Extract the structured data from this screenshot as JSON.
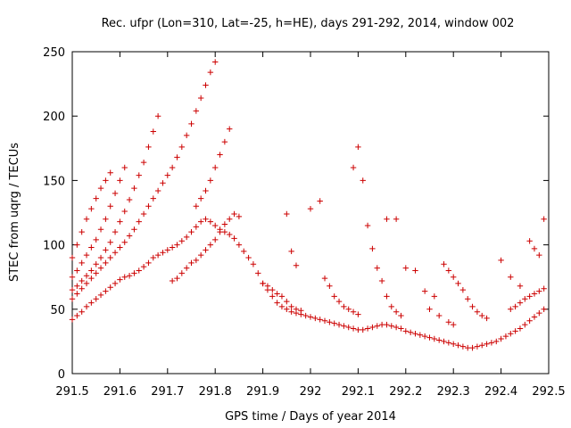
{
  "chart_data": {
    "type": "scatter",
    "title": "Rec. ufpr (Lon=310, Lat=-25, h=HE), days 291-292, 2014, window 002",
    "xlabel": "GPS time / Days of year 2014",
    "ylabel": "STEC from uqrg / TECUs",
    "xlim": [
      291.5,
      292.5
    ],
    "ylim": [
      0,
      250
    ],
    "grid": false,
    "legend": "none",
    "marker": "plus",
    "colors": {
      "points": "#cc0000",
      "axes": "#000000"
    },
    "x_ticks": [
      "291.5",
      "291.6",
      "291.7",
      "291.8",
      "291.9",
      "292",
      "292.1",
      "292.2",
      "292.3",
      "292.4",
      "292.5"
    ],
    "x_tick_values": [
      291.5,
      291.6,
      291.7,
      291.8,
      291.9,
      292.0,
      292.1,
      292.2,
      292.3,
      292.4,
      292.5
    ],
    "y_ticks": [
      "0",
      "50",
      "100",
      "150",
      "200",
      "250"
    ],
    "y_tick_values": [
      0,
      50,
      100,
      150,
      200,
      250
    ],
    "points": [
      [
        291.5,
        42
      ],
      [
        291.51,
        45
      ],
      [
        291.52,
        48
      ],
      [
        291.53,
        52
      ],
      [
        291.54,
        55
      ],
      [
        291.55,
        58
      ],
      [
        291.56,
        61
      ],
      [
        291.57,
        64
      ],
      [
        291.58,
        67
      ],
      [
        291.59,
        70
      ],
      [
        291.6,
        73
      ],
      [
        291.61,
        75
      ],
      [
        291.62,
        76
      ],
      [
        291.63,
        78
      ],
      [
        291.64,
        80
      ],
      [
        291.65,
        83
      ],
      [
        291.66,
        86
      ],
      [
        291.67,
        90
      ],
      [
        291.68,
        92
      ],
      [
        291.69,
        94
      ],
      [
        291.7,
        96
      ],
      [
        291.71,
        98
      ],
      [
        291.72,
        100
      ],
      [
        291.73,
        103
      ],
      [
        291.74,
        106
      ],
      [
        291.75,
        110
      ],
      [
        291.76,
        114
      ],
      [
        291.77,
        118
      ],
      [
        291.78,
        120
      ],
      [
        291.79,
        118
      ],
      [
        291.8,
        115
      ],
      [
        291.81,
        112
      ],
      [
        291.82,
        110
      ],
      [
        291.83,
        108
      ],
      [
        291.84,
        105
      ],
      [
        291.85,
        100
      ],
      [
        291.86,
        95
      ],
      [
        291.87,
        90
      ],
      [
        291.88,
        85
      ],
      [
        291.89,
        78
      ],
      [
        291.9,
        70
      ],
      [
        291.91,
        65
      ],
      [
        291.92,
        60
      ],
      [
        291.93,
        55
      ],
      [
        291.94,
        52
      ],
      [
        291.95,
        50
      ],
      [
        291.96,
        48
      ],
      [
        291.97,
        47
      ],
      [
        291.98,
        46
      ],
      [
        291.99,
        45
      ],
      [
        292.0,
        44
      ],
      [
        292.01,
        43
      ],
      [
        292.02,
        42
      ],
      [
        292.03,
        41
      ],
      [
        292.04,
        40
      ],
      [
        292.05,
        39
      ],
      [
        292.06,
        38
      ],
      [
        292.07,
        37
      ],
      [
        292.08,
        36
      ],
      [
        292.09,
        35
      ],
      [
        292.1,
        34
      ],
      [
        292.11,
        34
      ],
      [
        292.12,
        35
      ],
      [
        292.13,
        36
      ],
      [
        292.14,
        37
      ],
      [
        292.15,
        38
      ],
      [
        292.16,
        38
      ],
      [
        292.17,
        37
      ],
      [
        292.18,
        36
      ],
      [
        292.19,
        35
      ],
      [
        292.2,
        33
      ],
      [
        292.21,
        32
      ],
      [
        292.22,
        31
      ],
      [
        292.23,
        30
      ],
      [
        292.24,
        29
      ],
      [
        292.25,
        28
      ],
      [
        292.26,
        27
      ],
      [
        292.27,
        26
      ],
      [
        292.28,
        25
      ],
      [
        292.29,
        24
      ],
      [
        292.3,
        23
      ],
      [
        292.31,
        22
      ],
      [
        292.32,
        21
      ],
      [
        292.33,
        20
      ],
      [
        292.34,
        20
      ],
      [
        292.35,
        21
      ],
      [
        292.36,
        22
      ],
      [
        292.37,
        23
      ],
      [
        292.38,
        24
      ],
      [
        292.39,
        25
      ],
      [
        292.4,
        27
      ],
      [
        292.41,
        29
      ],
      [
        292.42,
        31
      ],
      [
        292.43,
        33
      ],
      [
        292.44,
        35
      ],
      [
        292.45,
        38
      ],
      [
        292.46,
        41
      ],
      [
        292.47,
        44
      ],
      [
        292.48,
        47
      ],
      [
        292.49,
        50
      ],
      [
        291.5,
        58
      ],
      [
        291.51,
        62
      ],
      [
        291.52,
        66
      ],
      [
        291.53,
        70
      ],
      [
        291.54,
        74
      ],
      [
        291.55,
        78
      ],
      [
        291.56,
        82
      ],
      [
        291.57,
        86
      ],
      [
        291.58,
        90
      ],
      [
        291.59,
        94
      ],
      [
        291.6,
        98
      ],
      [
        291.61,
        102
      ],
      [
        291.62,
        107
      ],
      [
        291.63,
        112
      ],
      [
        291.64,
        118
      ],
      [
        291.65,
        124
      ],
      [
        291.66,
        130
      ],
      [
        291.67,
        136
      ],
      [
        291.68,
        142
      ],
      [
        291.69,
        148
      ],
      [
        291.7,
        154
      ],
      [
        291.71,
        160
      ],
      [
        291.72,
        168
      ],
      [
        291.73,
        176
      ],
      [
        291.74,
        185
      ],
      [
        291.75,
        194
      ],
      [
        291.76,
        204
      ],
      [
        291.77,
        214
      ],
      [
        291.78,
        224
      ],
      [
        291.79,
        234
      ],
      [
        291.8,
        242
      ],
      [
        291.5,
        65
      ],
      [
        291.51,
        68
      ],
      [
        291.52,
        72
      ],
      [
        291.53,
        76
      ],
      [
        291.54,
        80
      ],
      [
        291.55,
        85
      ],
      [
        291.56,
        90
      ],
      [
        291.57,
        96
      ],
      [
        291.58,
        102
      ],
      [
        291.59,
        110
      ],
      [
        291.6,
        118
      ],
      [
        291.61,
        126
      ],
      [
        291.62,
        135
      ],
      [
        291.63,
        144
      ],
      [
        291.64,
        154
      ],
      [
        291.65,
        164
      ],
      [
        291.66,
        176
      ],
      [
        291.67,
        188
      ],
      [
        291.68,
        200
      ],
      [
        291.5,
        75
      ],
      [
        291.51,
        80
      ],
      [
        291.52,
        86
      ],
      [
        291.53,
        92
      ],
      [
        291.54,
        98
      ],
      [
        291.55,
        104
      ],
      [
        291.56,
        112
      ],
      [
        291.57,
        120
      ],
      [
        291.58,
        130
      ],
      [
        291.59,
        140
      ],
      [
        291.6,
        150
      ],
      [
        291.61,
        160
      ],
      [
        291.5,
        90
      ],
      [
        291.51,
        100
      ],
      [
        291.52,
        110
      ],
      [
        291.53,
        120
      ],
      [
        291.54,
        128
      ],
      [
        291.55,
        136
      ],
      [
        291.56,
        144
      ],
      [
        291.57,
        150
      ],
      [
        291.58,
        156
      ],
      [
        291.71,
        72
      ],
      [
        291.72,
        74
      ],
      [
        291.73,
        78
      ],
      [
        291.74,
        82
      ],
      [
        291.75,
        86
      ],
      [
        291.76,
        88
      ],
      [
        291.77,
        92
      ],
      [
        291.78,
        96
      ],
      [
        291.79,
        100
      ],
      [
        291.8,
        104
      ],
      [
        291.81,
        110
      ],
      [
        291.82,
        116
      ],
      [
        291.83,
        120
      ],
      [
        291.84,
        124
      ],
      [
        291.85,
        122
      ],
      [
        291.76,
        130
      ],
      [
        291.77,
        136
      ],
      [
        291.78,
        142
      ],
      [
        291.79,
        150
      ],
      [
        291.8,
        160
      ],
      [
        291.81,
        170
      ],
      [
        291.82,
        180
      ],
      [
        291.83,
        190
      ],
      [
        291.9,
        70
      ],
      [
        291.91,
        68
      ],
      [
        291.92,
        65
      ],
      [
        291.93,
        62
      ],
      [
        291.94,
        60
      ],
      [
        291.95,
        56
      ],
      [
        291.96,
        52
      ],
      [
        291.97,
        50
      ],
      [
        291.98,
        49
      ],
      [
        291.95,
        124
      ],
      [
        291.96,
        95
      ],
      [
        291.97,
        84
      ],
      [
        292.0,
        128
      ],
      [
        292.02,
        134
      ],
      [
        292.03,
        74
      ],
      [
        292.04,
        68
      ],
      [
        292.05,
        60
      ],
      [
        292.06,
        56
      ],
      [
        292.07,
        52
      ],
      [
        292.08,
        50
      ],
      [
        292.09,
        48
      ],
      [
        292.1,
        46
      ],
      [
        292.09,
        160
      ],
      [
        292.1,
        176
      ],
      [
        292.11,
        150
      ],
      [
        292.12,
        115
      ],
      [
        292.13,
        97
      ],
      [
        292.14,
        82
      ],
      [
        292.15,
        72
      ],
      [
        292.16,
        60
      ],
      [
        292.17,
        52
      ],
      [
        292.18,
        48
      ],
      [
        292.19,
        45
      ],
      [
        292.2,
        82
      ],
      [
        292.22,
        80
      ],
      [
        292.24,
        64
      ],
      [
        292.26,
        60
      ],
      [
        292.18,
        120
      ],
      [
        292.16,
        120
      ],
      [
        292.25,
        50
      ],
      [
        292.27,
        45
      ],
      [
        292.29,
        40
      ],
      [
        292.3,
        38
      ],
      [
        292.28,
        85
      ],
      [
        292.29,
        80
      ],
      [
        292.3,
        75
      ],
      [
        292.31,
        70
      ],
      [
        292.32,
        65
      ],
      [
        292.33,
        58
      ],
      [
        292.34,
        52
      ],
      [
        292.35,
        48
      ],
      [
        292.36,
        45
      ],
      [
        292.37,
        43
      ],
      [
        292.4,
        88
      ],
      [
        292.42,
        75
      ],
      [
        292.44,
        68
      ],
      [
        292.46,
        103
      ],
      [
        292.47,
        97
      ],
      [
        292.48,
        92
      ],
      [
        292.49,
        120
      ],
      [
        292.42,
        50
      ],
      [
        292.43,
        52
      ],
      [
        292.44,
        55
      ],
      [
        292.45,
        58
      ],
      [
        292.46,
        60
      ],
      [
        292.47,
        62
      ],
      [
        292.48,
        64
      ],
      [
        292.49,
        66
      ]
    ]
  }
}
